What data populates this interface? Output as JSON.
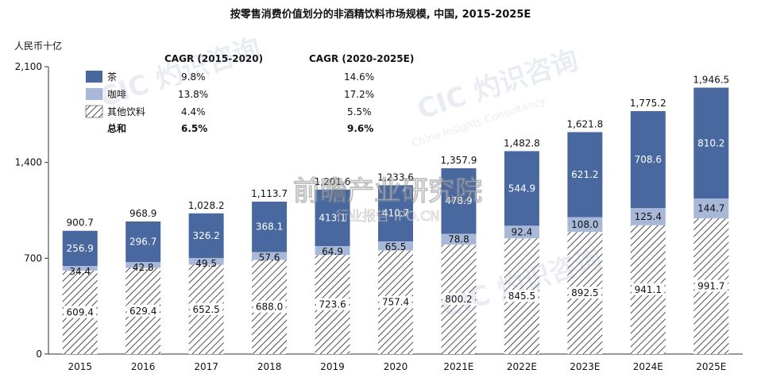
{
  "title": "按零售消费价值划分的非酒精饮料市场规模, 中国, 2015-2025E",
  "chart_data": {
    "type": "bar",
    "stacked": true,
    "title": "按零售消费价值划分的非酒精饮料市场规模, 中国, 2015-2025E",
    "ylabel": "人民币十亿",
    "ylim": [
      0,
      2100
    ],
    "yticks": [
      "0",
      "700",
      "1,400",
      "2,100"
    ],
    "categories": [
      "2015",
      "2016",
      "2017",
      "2018",
      "2019",
      "2020",
      "2021E",
      "2022E",
      "2023E",
      "2024E",
      "2025E"
    ],
    "series": [
      {
        "name": "其他饮料",
        "values": [
          609.4,
          629.4,
          652.5,
          688.0,
          723.6,
          757.4,
          800.2,
          845.5,
          892.5,
          941.1,
          991.7
        ],
        "labels": [
          "609.4",
          "629.4",
          "652.5",
          "688.0",
          "723.6",
          "757.4",
          "800.2",
          "845.5",
          "892.5",
          "941.1",
          "991.7"
        ]
      },
      {
        "name": "咖啡",
        "values": [
          34.4,
          42.8,
          49.5,
          57.6,
          64.9,
          65.5,
          78.8,
          92.4,
          108.0,
          125.4,
          144.7
        ],
        "labels": [
          "34.4",
          "42.8",
          "49.5",
          "57.6",
          "64.9",
          "65.5",
          "78.8",
          "92.4",
          "108.0",
          "125.4",
          "144.7"
        ]
      },
      {
        "name": "茶",
        "values": [
          256.9,
          296.7,
          326.2,
          368.1,
          413.1,
          410.7,
          478.9,
          544.9,
          621.2,
          708.6,
          810.2
        ],
        "labels": [
          "256.9",
          "296.7",
          "326.2",
          "368.1",
          "413.1",
          "410.7",
          "478.9",
          "544.9",
          "621.2",
          "708.6",
          "810.2"
        ]
      }
    ],
    "totals": [
      900.7,
      968.9,
      1028.2,
      1113.7,
      1201.6,
      1233.6,
      1357.9,
      1482.8,
      1621.8,
      1775.2,
      1946.5
    ],
    "total_labels": [
      "900.7",
      "968.9",
      "1,028.2",
      "1,113.7",
      "1,201.6",
      "1,233.6",
      "1,357.9",
      "1,482.8",
      "1,621.8",
      "1,775.2",
      "1,946.5"
    ],
    "colors": {
      "tea": "#4a68a0",
      "coffee": "#a8b8d8",
      "other_stroke": "#222222",
      "axis": "#333333"
    },
    "cagr_table": {
      "headers": [
        "CAGR (2015-2020)",
        "CAGR (2020-2025E)"
      ],
      "rows": [
        {
          "label": "茶",
          "v1": "9.8%",
          "v2": "14.6%",
          "swatch": "tea"
        },
        {
          "label": "咖啡",
          "v1": "13.8%",
          "v2": "17.2%",
          "swatch": "coffee"
        },
        {
          "label": "其他饮料",
          "v1": "4.4%",
          "v2": "5.5%",
          "swatch": "hatch"
        },
        {
          "label": "总和",
          "v1": "6.5%",
          "v2": "9.6%",
          "swatch": "none",
          "bold": true
        }
      ]
    },
    "legend_position": "top-left",
    "grid": false
  },
  "watermarks": [
    "CIC 灼识咨询",
    "China Insights Consultancy",
    "前瞻产业研究院",
    "行业报告 IPO.CN"
  ]
}
